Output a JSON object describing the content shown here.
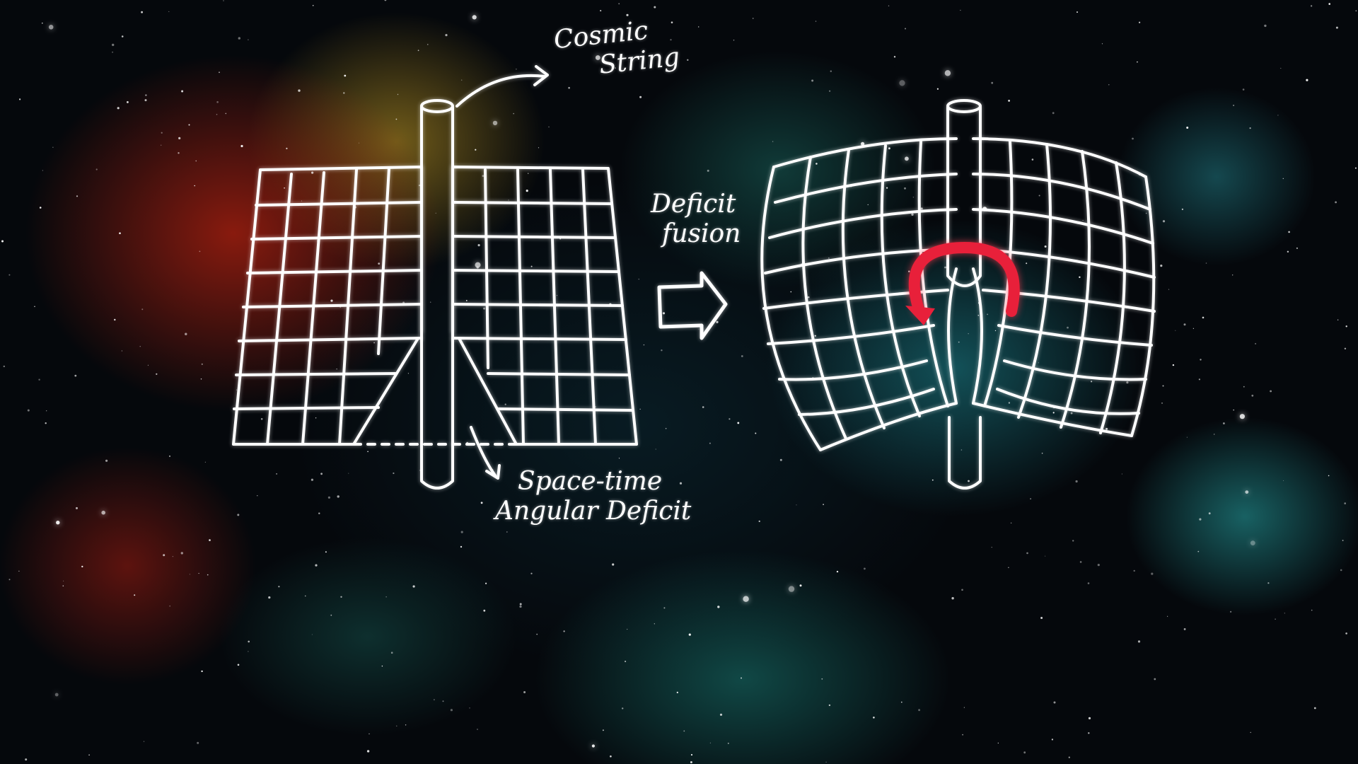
{
  "labels": {
    "cosmic_string": [
      "Cosmic",
      "String"
    ],
    "deficit_fusion": [
      "Deficit",
      "fusion"
    ],
    "angular_deficit": [
      "Space-time",
      "Angular Deficit"
    ]
  },
  "colors": {
    "chalk": "#ffffff",
    "loop_arrow": "#e8203a"
  },
  "icons": [
    "arrow-right-icon",
    "loop-arrow-icon"
  ]
}
